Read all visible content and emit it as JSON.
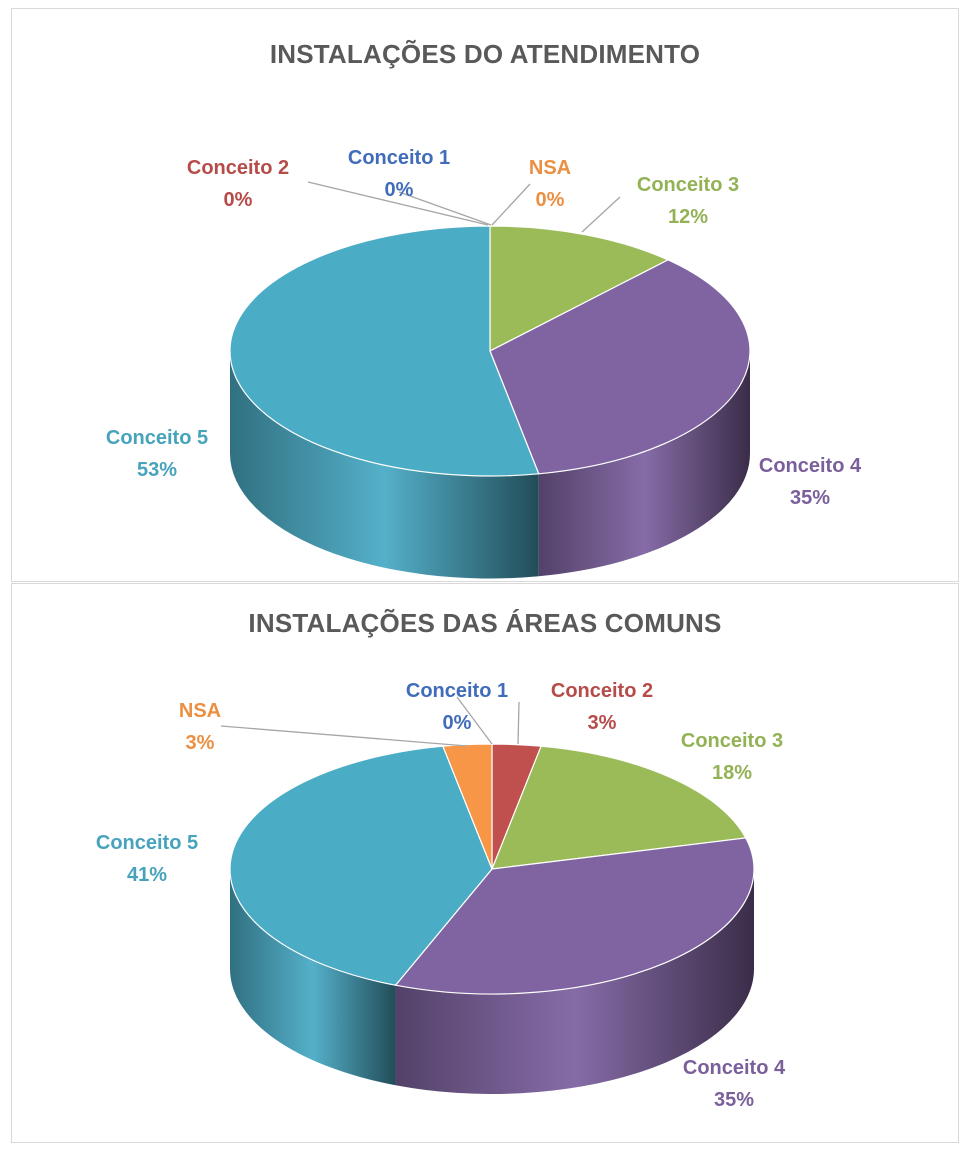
{
  "chart_data": [
    {
      "type": "pie",
      "title": "INSTALAÇÕES DO ATENDIMENTO",
      "slices": [
        {
          "name": "Conceito 1",
          "value": 0,
          "label": "0%",
          "color": "#4472C4"
        },
        {
          "name": "Conceito 2",
          "value": 0,
          "label": "0%",
          "color": "#C0504D"
        },
        {
          "name": "Conceito 3",
          "value": 12,
          "label": "12%",
          "color": "#9BBB59"
        },
        {
          "name": "Conceito 4",
          "value": 35,
          "label": "35%",
          "color": "#8064A2"
        },
        {
          "name": "Conceito 5",
          "value": 53,
          "label": "53%",
          "color": "#4BACC6"
        },
        {
          "name": "NSA",
          "value": 0,
          "label": "0%",
          "color": "#F79646"
        }
      ]
    },
    {
      "type": "pie",
      "title": "INSTALAÇÕES DAS ÁREAS COMUNS",
      "slices": [
        {
          "name": "Conceito 1",
          "value": 0,
          "label": "0%",
          "color": "#4472C4"
        },
        {
          "name": "Conceito 2",
          "value": 3,
          "label": "3%",
          "color": "#C0504D"
        },
        {
          "name": "Conceito 3",
          "value": 18,
          "label": "18%",
          "color": "#9BBB59"
        },
        {
          "name": "Conceito 4",
          "value": 35,
          "label": "35%",
          "color": "#8064A2"
        },
        {
          "name": "Conceito 5",
          "value": 41,
          "label": "41%",
          "color": "#4BACC6"
        },
        {
          "name": "NSA",
          "value": 3,
          "label": "3%",
          "color": "#F79646"
        }
      ]
    }
  ]
}
